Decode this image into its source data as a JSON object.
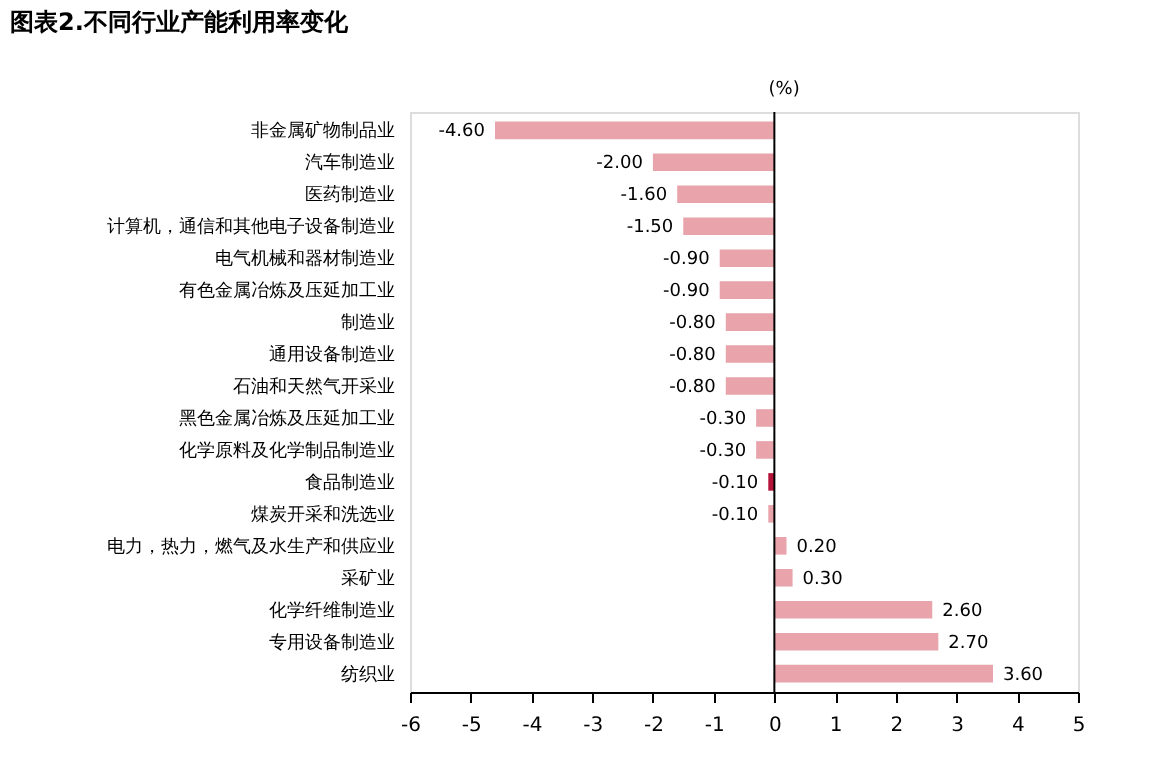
{
  "chart_data": {
    "type": "bar",
    "orientation": "horizontal",
    "title": "图表2.不同行业产能利用率变化",
    "xlabel": "(%)",
    "categories": [
      "非金属矿物制品业",
      "汽车制造业",
      "医药制造业",
      "计算机，通信和其他电子设备制造业",
      "电气机械和器材制造业",
      "有色金属冶炼及压延加工业",
      "制造业",
      "通用设备制造业",
      "石油和天然气开采业",
      "黑色金属冶炼及压延加工业",
      "化学原料及化学制品制造业",
      "食品制造业",
      "煤炭开采和洗选业",
      "电力，热力，燃气及水生产和供应业",
      "采矿业",
      "化学纤维制造业",
      "专用设备制造业",
      "纺织业"
    ],
    "values": [
      -4.6,
      -2.0,
      -1.6,
      -1.5,
      -0.9,
      -0.9,
      -0.8,
      -0.8,
      -0.8,
      -0.3,
      -0.3,
      -0.1,
      -0.1,
      0.2,
      0.3,
      2.6,
      2.7,
      3.6
    ],
    "value_labels": [
      "-4.60",
      "-2.00",
      "-1.60",
      "-1.50",
      "-0.90",
      "-0.90",
      "-0.80",
      "-0.80",
      "-0.80",
      "-0.30",
      "-0.30",
      "-0.10",
      "-0.10",
      "0.20",
      "0.30",
      "2.60",
      "2.70",
      "3.60"
    ],
    "colors": [
      "#e8a3ab",
      "#e8a3ab",
      "#e8a3ab",
      "#e8a3ab",
      "#e8a3ab",
      "#e8a3ab",
      "#e8a3ab",
      "#e8a3ab",
      "#e8a3ab",
      "#e8a3ab",
      "#e8a3ab",
      "#b5123a",
      "#e8a3ab",
      "#e8a3ab",
      "#e8a3ab",
      "#e8a3ab",
      "#e8a3ab",
      "#e8a3ab"
    ],
    "xlim": [
      -6,
      5
    ],
    "xticks": [
      -6,
      -5,
      -4,
      -3,
      -2,
      -1,
      0,
      1,
      2,
      3,
      4,
      5
    ],
    "ref_lines": [
      {
        "axis": "x",
        "value": 0
      }
    ],
    "grid": false
  }
}
